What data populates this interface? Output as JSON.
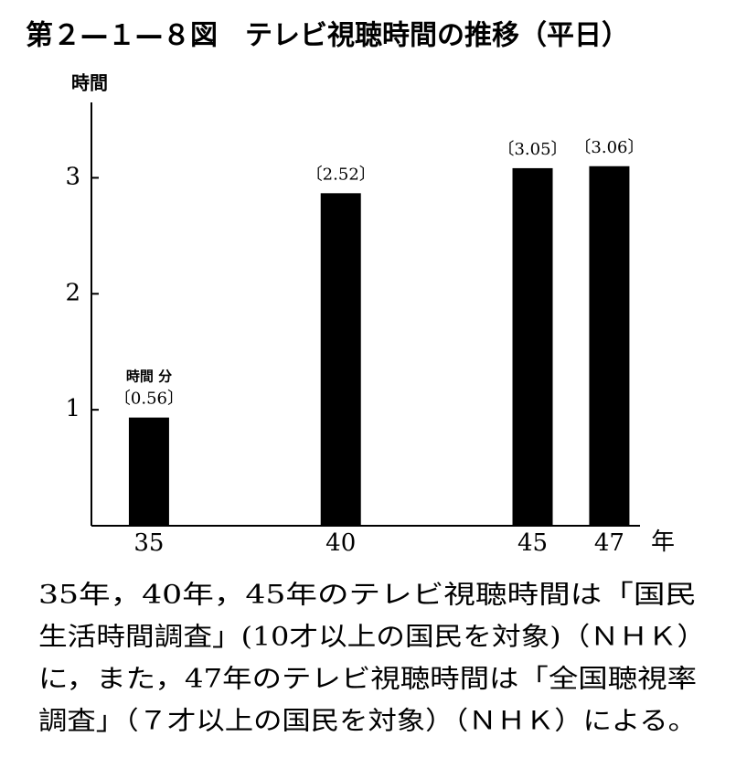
{
  "chart_data": {
    "type": "bar",
    "title": "第２—１—８図　テレビ視聴時間の推移（平日）",
    "y_label": "時間",
    "x_label": "年",
    "annotation": "時間 分",
    "x": [
      35,
      40,
      45,
      47
    ],
    "xticks": [
      35,
      40,
      45,
      47
    ],
    "xlim": [
      33.5,
      47.8
    ],
    "values": [
      0.933,
      2.867,
      3.083,
      3.1
    ],
    "value_labels": [
      "〔0.56〕",
      "〔2.52〕",
      "〔3.05〕",
      "〔3.06〕"
    ],
    "color": "#000000",
    "ylim": [
      0,
      3.65
    ],
    "yticks": [
      1,
      2,
      3
    ],
    "note_lines": [
      "35年，40年，45年のテレビ視聴時間は「国民",
      "生活時間調査」(10才以上の国民を対象)（ＮＨＫ）",
      "に，また，47年のテレビ視聴時間は「全国聴視率",
      "調査」（７才以上の国民を対象）（ＮＨＫ）による。"
    ]
  }
}
